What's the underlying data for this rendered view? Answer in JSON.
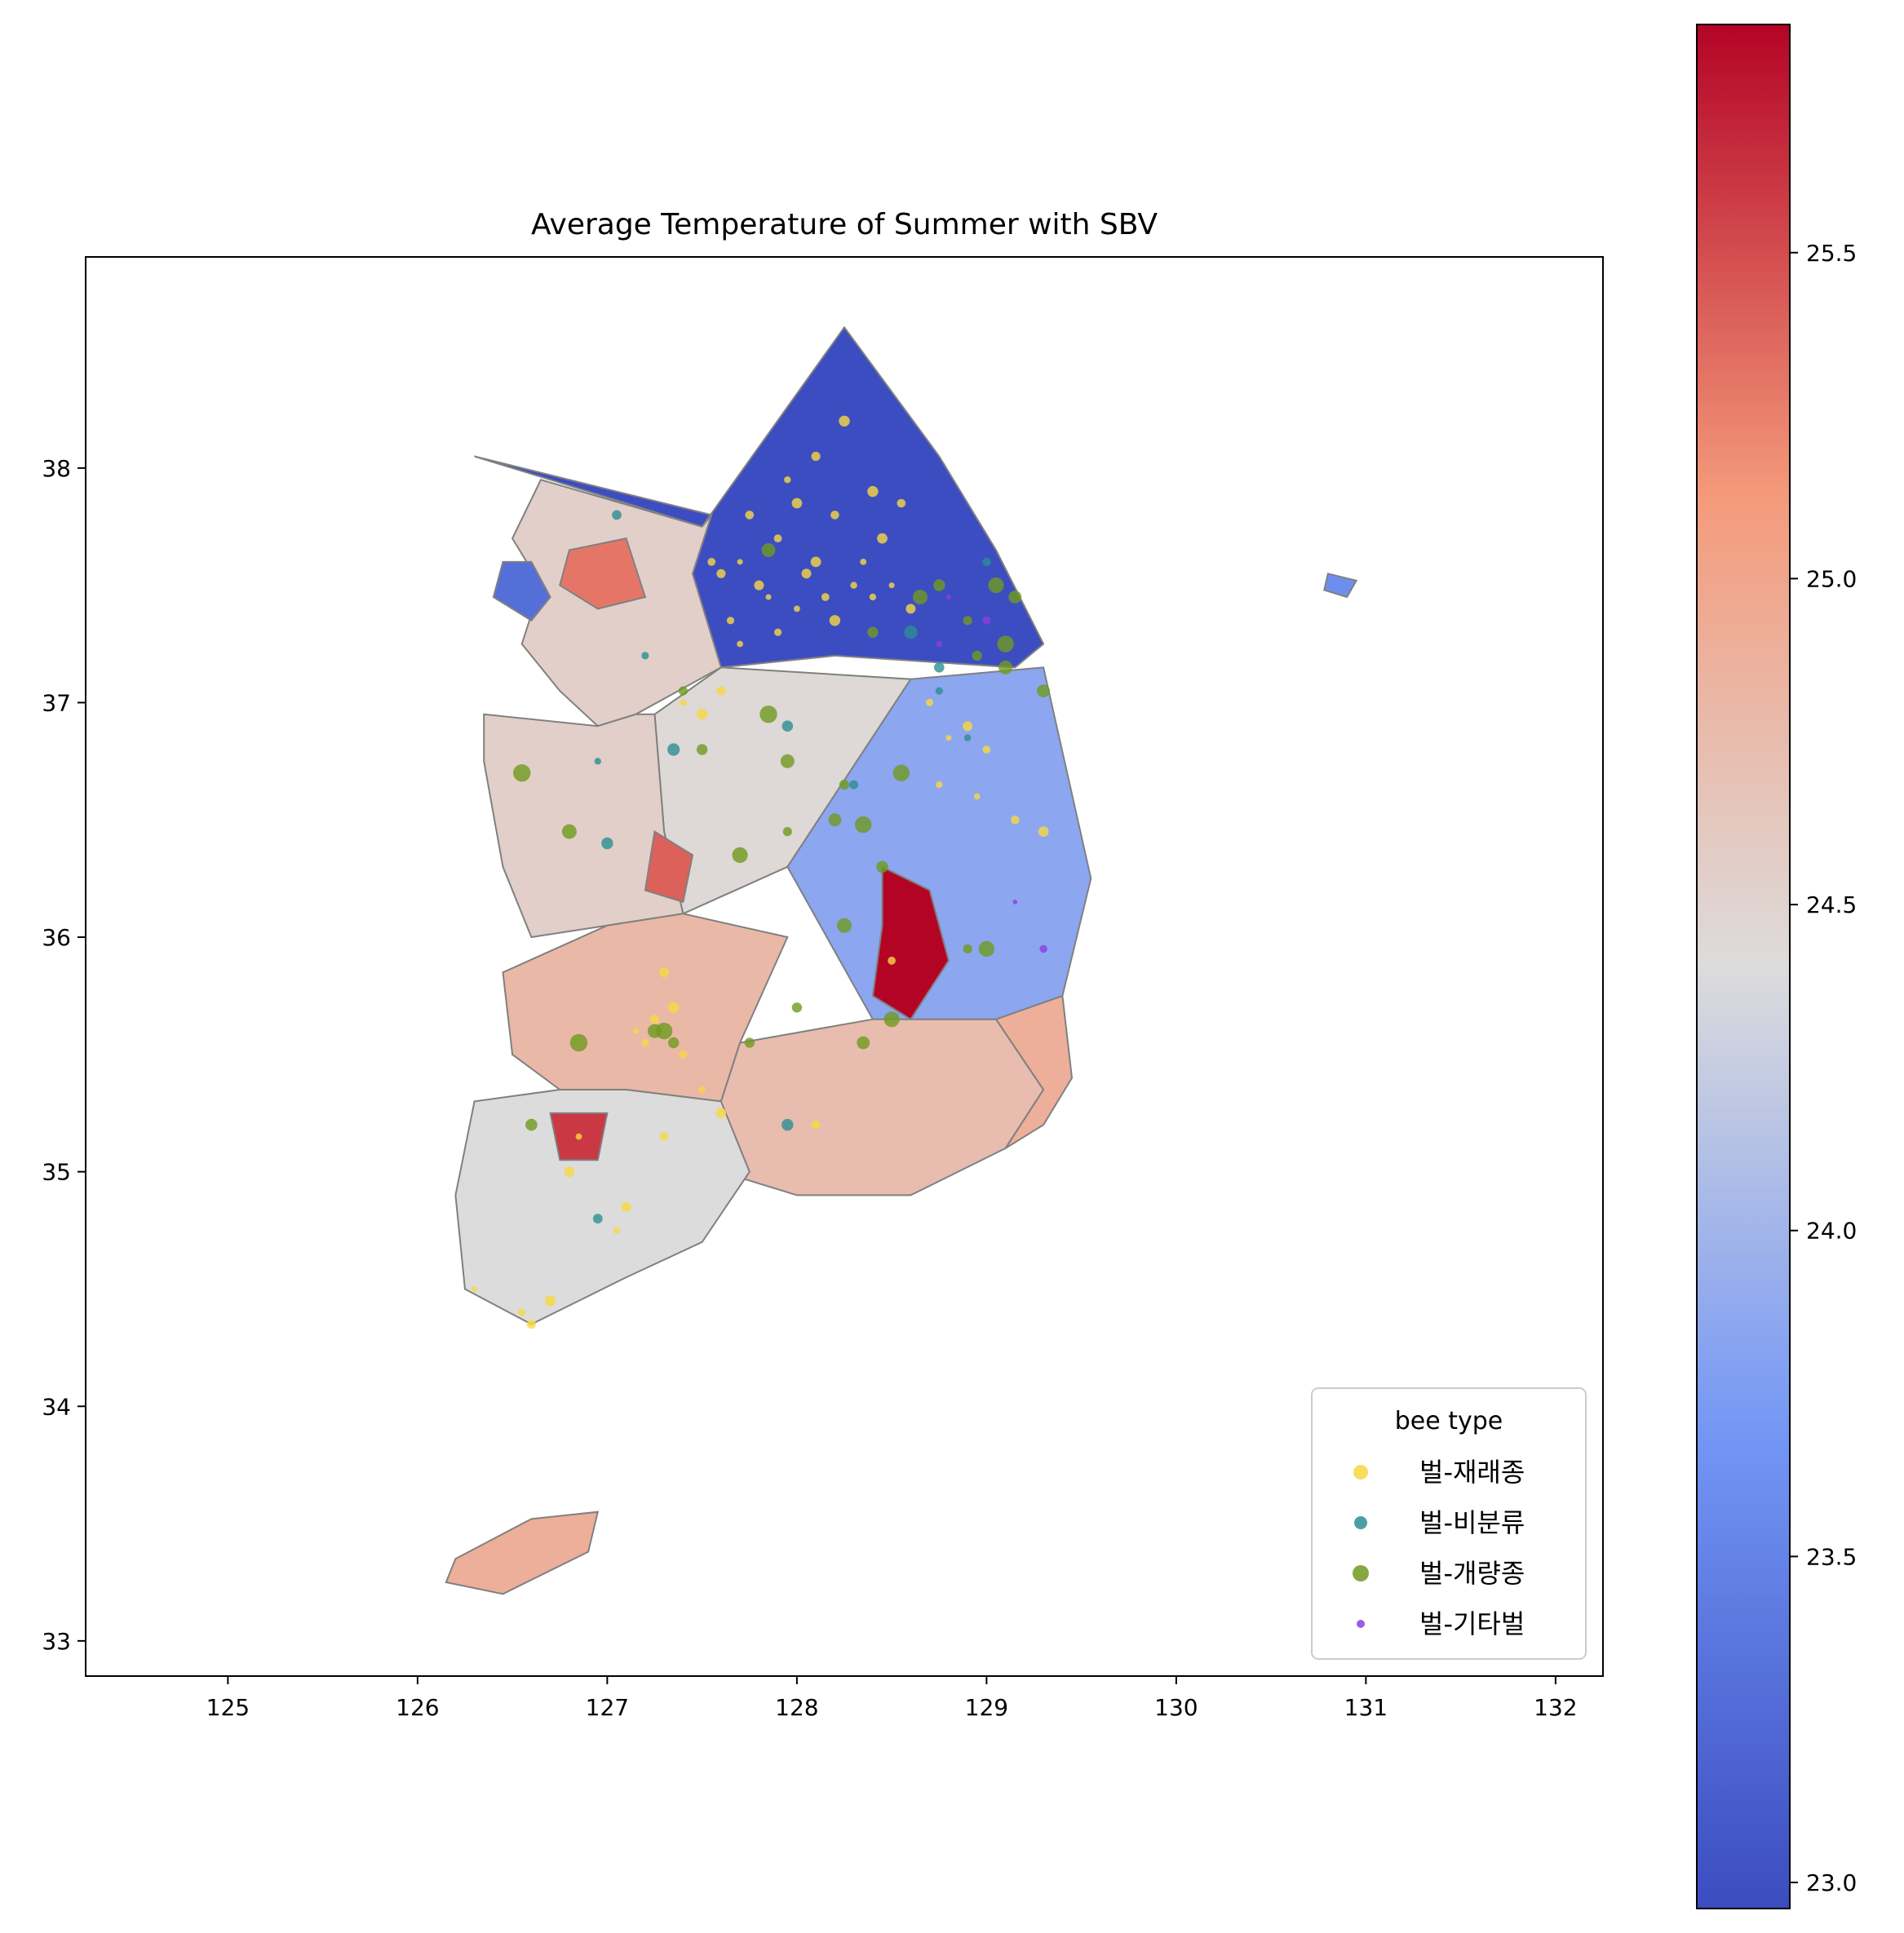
{
  "chart_data": {
    "type": "choropleth-scatter",
    "title": "Average Temperature of Summer with SBV",
    "xlabel": "",
    "ylabel": "",
    "xlim": [
      124.25,
      132.25
    ],
    "ylim": [
      32.85,
      38.9
    ],
    "x_ticks": [
      "125",
      "126",
      "127",
      "128",
      "129",
      "130",
      "131",
      "132"
    ],
    "y_ticks": [
      "33",
      "34",
      "35",
      "36",
      "37",
      "38"
    ],
    "colormap": "coolwarm",
    "colorbar": {
      "range": [
        22.96,
        25.85
      ],
      "ticks": [
        "23.0",
        "23.5",
        "24.0",
        "24.5",
        "25.0",
        "25.5"
      ]
    },
    "regions": [
      {
        "value": 22.97,
        "polygon": [
          [
            126.3,
            38.05
          ],
          [
            126.7,
            37.95
          ],
          [
            127.5,
            37.75
          ],
          [
            128.25,
            38.6
          ],
          [
            128.75,
            38.05
          ],
          [
            129.05,
            37.65
          ],
          [
            129.3,
            37.25
          ],
          [
            129.15,
            37.15
          ],
          [
            128.2,
            37.2
          ],
          [
            127.6,
            37.15
          ],
          [
            127.45,
            37.55
          ],
          [
            127.55,
            37.8
          ]
        ]
      },
      {
        "value": 24.55,
        "polygon": [
          [
            126.65,
            37.95
          ],
          [
            127.5,
            37.75
          ],
          [
            127.55,
            37.8
          ],
          [
            127.45,
            37.55
          ],
          [
            127.6,
            37.15
          ],
          [
            127.15,
            36.95
          ],
          [
            126.95,
            36.9
          ],
          [
            126.75,
            37.05
          ],
          [
            126.55,
            37.25
          ],
          [
            126.65,
            37.5
          ],
          [
            126.5,
            37.7
          ]
        ]
      },
      {
        "value": 25.3,
        "polygon": [
          [
            126.8,
            37.65
          ],
          [
            127.1,
            37.7
          ],
          [
            127.2,
            37.45
          ],
          [
            126.95,
            37.4
          ],
          [
            126.75,
            37.5
          ]
        ]
      },
      {
        "value": 23.3,
        "polygon": [
          [
            126.6,
            37.6
          ],
          [
            126.7,
            37.45
          ],
          [
            126.6,
            37.35
          ],
          [
            126.4,
            37.45
          ],
          [
            126.45,
            37.6
          ]
        ]
      },
      {
        "value": 24.45,
        "polygon": [
          [
            127.6,
            37.15
          ],
          [
            128.6,
            37.1
          ],
          [
            127.95,
            36.3
          ],
          [
            127.4,
            36.1
          ],
          [
            127.3,
            36.45
          ],
          [
            127.25,
            36.95
          ]
        ]
      },
      {
        "value": 23.85,
        "polygon": [
          [
            128.6,
            37.1
          ],
          [
            129.3,
            37.15
          ],
          [
            129.55,
            36.25
          ],
          [
            129.4,
            35.75
          ],
          [
            128.9,
            35.6
          ],
          [
            128.4,
            35.65
          ],
          [
            127.95,
            36.3
          ]
        ]
      },
      {
        "value": 25.85,
        "polygon": [
          [
            128.45,
            36.3
          ],
          [
            128.7,
            36.2
          ],
          [
            128.8,
            35.9
          ],
          [
            128.6,
            35.65
          ],
          [
            128.4,
            35.75
          ],
          [
            128.45,
            36.05
          ]
        ]
      },
      {
        "value": 24.55,
        "polygon": [
          [
            126.35,
            36.95
          ],
          [
            126.95,
            36.9
          ],
          [
            127.15,
            36.95
          ],
          [
            127.25,
            36.95
          ],
          [
            127.3,
            36.45
          ],
          [
            127.4,
            36.1
          ],
          [
            127.0,
            36.05
          ],
          [
            126.6,
            36.0
          ],
          [
            126.45,
            36.3
          ],
          [
            126.35,
            36.75
          ]
        ]
      },
      {
        "value": 25.4,
        "polygon": [
          [
            127.25,
            36.45
          ],
          [
            127.45,
            36.35
          ],
          [
            127.4,
            36.15
          ],
          [
            127.2,
            36.2
          ]
        ]
      },
      {
        "value": 24.8,
        "polygon": [
          [
            126.45,
            35.85
          ],
          [
            127.0,
            36.05
          ],
          [
            127.4,
            36.1
          ],
          [
            127.95,
            36.0
          ],
          [
            127.7,
            35.55
          ],
          [
            127.6,
            35.3
          ],
          [
            127.1,
            35.35
          ],
          [
            126.75,
            35.35
          ],
          [
            126.5,
            35.5
          ]
        ]
      },
      {
        "value": 24.75,
        "polygon": [
          [
            127.7,
            35.55
          ],
          [
            128.4,
            35.65
          ],
          [
            129.05,
            35.65
          ],
          [
            129.3,
            35.35
          ],
          [
            129.1,
            35.1
          ],
          [
            128.6,
            34.9
          ],
          [
            128.0,
            34.9
          ],
          [
            127.6,
            35.0
          ],
          [
            127.6,
            35.3
          ]
        ]
      },
      {
        "value": 24.9,
        "polygon": [
          [
            129.05,
            35.65
          ],
          [
            129.4,
            35.75
          ],
          [
            129.45,
            35.4
          ],
          [
            129.3,
            35.2
          ],
          [
            129.1,
            35.1
          ],
          [
            129.3,
            35.35
          ]
        ]
      },
      {
        "value": 24.4,
        "polygon": [
          [
            126.3,
            35.3
          ],
          [
            126.75,
            35.35
          ],
          [
            127.1,
            35.35
          ],
          [
            127.6,
            35.3
          ],
          [
            127.75,
            35.0
          ],
          [
            127.5,
            34.7
          ],
          [
            127.1,
            34.55
          ],
          [
            126.6,
            34.35
          ],
          [
            126.25,
            34.5
          ],
          [
            126.2,
            34.9
          ]
        ]
      },
      {
        "value": 25.6,
        "polygon": [
          [
            126.7,
            35.25
          ],
          [
            127.0,
            35.25
          ],
          [
            126.95,
            35.05
          ],
          [
            126.75,
            35.05
          ]
        ]
      },
      {
        "value": 24.9,
        "polygon": [
          [
            126.2,
            33.35
          ],
          [
            126.6,
            33.52
          ],
          [
            126.95,
            33.55
          ],
          [
            126.9,
            33.38
          ],
          [
            126.45,
            33.2
          ],
          [
            126.15,
            33.25
          ]
        ]
      },
      {
        "value": 23.6,
        "polygon": [
          [
            130.8,
            37.55
          ],
          [
            130.95,
            37.52
          ],
          [
            130.9,
            37.45
          ],
          [
            130.78,
            37.48
          ]
        ]
      }
    ],
    "legend": {
      "title": "bee type",
      "placement": "lower-right",
      "entries": [
        "벌-재래종",
        "벌-비분류",
        "벌-개량종",
        "벌-기타벌"
      ]
    },
    "series": [
      {
        "name": "벌-재래종",
        "color": "#f7d842",
        "points": [
          [
            127.7,
            37.6
          ],
          [
            127.8,
            37.5
          ],
          [
            127.9,
            37.7
          ],
          [
            128.0,
            37.4
          ],
          [
            128.1,
            37.6
          ],
          [
            128.2,
            37.8
          ],
          [
            128.3,
            37.5
          ],
          [
            128.4,
            37.9
          ],
          [
            127.6,
            37.55
          ],
          [
            127.65,
            37.35
          ],
          [
            127.85,
            37.45
          ],
          [
            128.05,
            37.55
          ],
          [
            128.15,
            37.45
          ],
          [
            128.35,
            37.6
          ],
          [
            128.45,
            37.7
          ],
          [
            127.75,
            37.8
          ],
          [
            127.95,
            37.95
          ],
          [
            128.25,
            38.2
          ],
          [
            128.1,
            38.05
          ],
          [
            127.9,
            37.3
          ],
          [
            128.5,
            37.5
          ],
          [
            128.6,
            37.4
          ],
          [
            127.55,
            37.6
          ],
          [
            127.7,
            37.25
          ],
          [
            128.0,
            37.85
          ],
          [
            128.55,
            37.85
          ],
          [
            127.4,
            37.0
          ],
          [
            127.5,
            36.95
          ],
          [
            127.6,
            37.05
          ],
          [
            128.7,
            37.0
          ],
          [
            128.8,
            36.85
          ],
          [
            128.9,
            36.9
          ],
          [
            129.0,
            36.8
          ],
          [
            128.95,
            36.6
          ],
          [
            129.3,
            36.45
          ],
          [
            129.15,
            36.5
          ],
          [
            128.75,
            36.65
          ],
          [
            127.35,
            35.7
          ],
          [
            127.25,
            35.65
          ],
          [
            127.2,
            35.55
          ],
          [
            127.15,
            35.6
          ],
          [
            127.3,
            35.85
          ],
          [
            127.4,
            35.5
          ],
          [
            127.5,
            35.35
          ],
          [
            126.8,
            35.0
          ],
          [
            127.3,
            35.15
          ],
          [
            127.05,
            34.75
          ],
          [
            126.7,
            34.45
          ],
          [
            126.6,
            34.35
          ],
          [
            126.55,
            34.4
          ],
          [
            126.3,
            34.5
          ],
          [
            127.1,
            34.85
          ],
          [
            128.5,
            35.9
          ],
          [
            126.85,
            35.15
          ],
          [
            127.6,
            35.25
          ],
          [
            128.1,
            35.2
          ],
          [
            128.4,
            37.45
          ],
          [
            128.2,
            37.35
          ]
        ]
      },
      {
        "name": "벌-비분류",
        "color": "#2a8f94",
        "points": [
          [
            126.95,
            36.75
          ],
          [
            127.0,
            36.4
          ],
          [
            127.05,
            37.8
          ],
          [
            127.2,
            37.2
          ],
          [
            127.35,
            36.8
          ],
          [
            128.75,
            37.15
          ],
          [
            129.0,
            37.6
          ],
          [
            128.6,
            37.3
          ],
          [
            127.95,
            36.9
          ],
          [
            128.3,
            36.65
          ],
          [
            128.9,
            36.85
          ],
          [
            127.95,
            35.2
          ],
          [
            126.95,
            34.8
          ],
          [
            128.75,
            37.05
          ]
        ]
      },
      {
        "name": "벌-개량종",
        "color": "#6f9a1f",
        "points": [
          [
            127.95,
            36.45
          ],
          [
            127.7,
            36.35
          ],
          [
            128.2,
            36.5
          ],
          [
            128.25,
            36.65
          ],
          [
            128.35,
            36.48
          ],
          [
            127.95,
            36.75
          ],
          [
            127.5,
            36.8
          ],
          [
            127.85,
            36.95
          ],
          [
            128.25,
            36.05
          ],
          [
            128.45,
            36.3
          ],
          [
            128.9,
            35.95
          ],
          [
            129.0,
            35.95
          ],
          [
            128.35,
            35.55
          ],
          [
            128.0,
            35.7
          ],
          [
            127.3,
            35.6
          ],
          [
            127.25,
            35.6
          ],
          [
            127.35,
            35.55
          ],
          [
            126.85,
            35.55
          ],
          [
            128.65,
            37.45
          ],
          [
            128.75,
            37.5
          ],
          [
            128.9,
            37.35
          ],
          [
            129.05,
            37.5
          ],
          [
            129.15,
            37.45
          ],
          [
            128.95,
            37.2
          ],
          [
            129.1,
            37.25
          ],
          [
            129.1,
            37.15
          ],
          [
            128.4,
            37.3
          ],
          [
            126.55,
            36.7
          ],
          [
            126.8,
            36.45
          ],
          [
            126.6,
            35.2
          ],
          [
            127.4,
            37.05
          ],
          [
            128.5,
            35.65
          ],
          [
            129.3,
            37.05
          ],
          [
            127.75,
            35.55
          ],
          [
            128.55,
            36.7
          ],
          [
            127.85,
            37.65
          ]
        ]
      },
      {
        "name": "벌-기타벌",
        "color": "#8a3fe0",
        "points": [
          [
            129.15,
            36.15
          ],
          [
            129.3,
            35.95
          ],
          [
            128.75,
            37.25
          ],
          [
            128.8,
            37.45
          ],
          [
            129.0,
            37.35
          ]
        ]
      }
    ]
  }
}
